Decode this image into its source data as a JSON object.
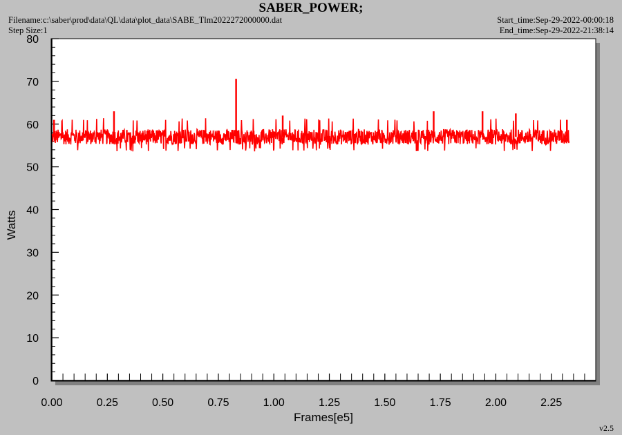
{
  "header": {
    "title": "SABER_POWER;",
    "filename": "Filename:c:\\saber\\prod\\data\\QL\\data\\plot_data\\SABE_Tlm2022272000000.dat",
    "step_size": "Step Size:1",
    "start_time": "Start_time:Sep-29-2022-00:00:18",
    "end_time": "End_time:Sep-29-2022-21:38:14"
  },
  "version": "v2.5",
  "colors": {
    "background": "#c0c0c0",
    "plot_area": "#ffffff",
    "series": "#ff0000",
    "shadow": "#808080"
  },
  "chart_data": {
    "type": "line",
    "title": "SABER_POWER;",
    "xlabel": "Frames[e5]",
    "ylabel": "Watts",
    "xlim": [
      0,
      2.45
    ],
    "ylim": [
      0,
      80
    ],
    "x_ticks": [
      "0.00",
      "0.25",
      "0.50",
      "0.75",
      "1.00",
      "1.25",
      "1.50",
      "1.75",
      "2.00",
      "2.25"
    ],
    "y_ticks": [
      "0",
      "10",
      "20",
      "30",
      "40",
      "50",
      "60",
      "70",
      "80"
    ],
    "grid": false,
    "series": [
      {
        "color": "#ff0000",
        "x_range": [
          0.0,
          2.33
        ],
        "baseline": 57.0,
        "typical_min": 54.0,
        "typical_max": 61.0,
        "spikes": [
          {
            "x": 0.01,
            "y": 61.0
          },
          {
            "x": 0.28,
            "y": 63.0
          },
          {
            "x": 0.83,
            "y": 70.6
          },
          {
            "x": 1.04,
            "y": 62.0
          },
          {
            "x": 1.72,
            "y": 63.0
          },
          {
            "x": 1.94,
            "y": 63.0
          },
          {
            "x": 2.09,
            "y": 62.5
          },
          {
            "x": 2.32,
            "y": 61.0
          }
        ]
      }
    ]
  }
}
